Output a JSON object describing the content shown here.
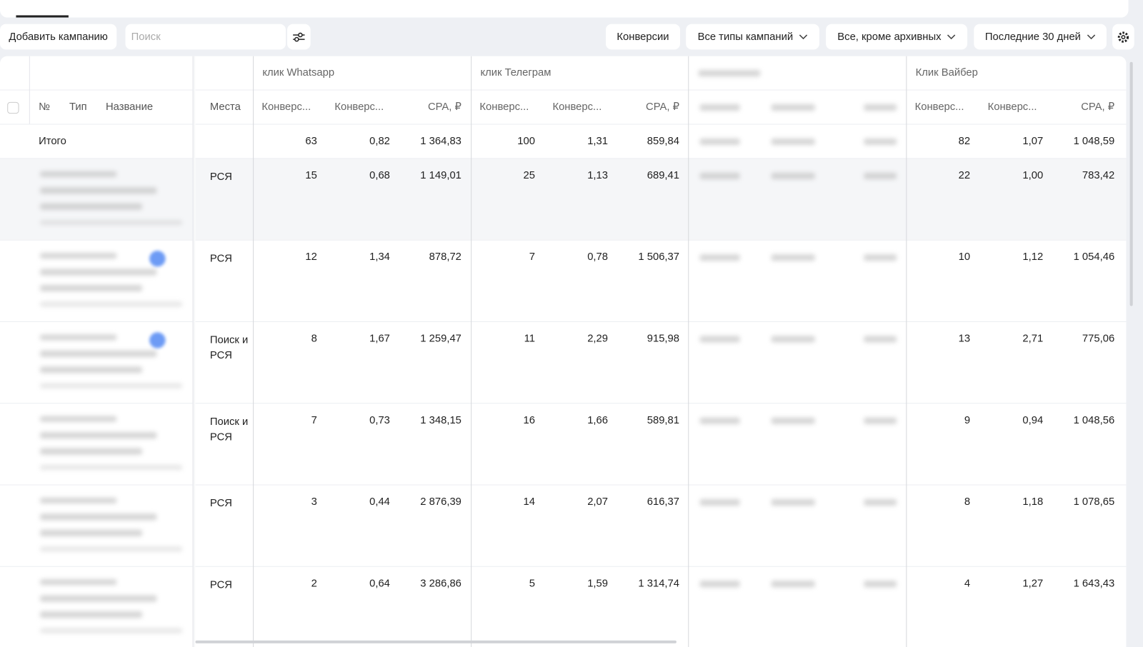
{
  "toolbar": {
    "add_button": "Добавить кампанию",
    "search_placeholder": "Поиск",
    "filters": [
      "Конверсии",
      "Все типы кампаний",
      "Все, кроме архивных",
      "Последние 30 дней"
    ]
  },
  "table": {
    "headers": {
      "num": "№",
      "type": "Тип",
      "name": "Название",
      "places": "Места"
    },
    "goals": [
      {
        "name": "клик Whatsapp",
        "columns": [
          "Конверс...",
          "Конверс...",
          "CPA, ₽"
        ]
      },
      {
        "name": "клик Телеграм",
        "columns": [
          "Конверс...",
          "Конверс...",
          "CPA, ₽"
        ]
      },
      {
        "name": "Клик Вайбер",
        "columns": [
          "Конверс...",
          "Конверс...",
          "CPA, ₽"
        ]
      }
    ],
    "total": {
      "label": "Итого",
      "values": [
        [
          "63",
          "0,82",
          "1 364,83"
        ],
        [
          "100",
          "1,31",
          "859,84"
        ],
        [
          "82",
          "1,07",
          "1 048,59"
        ]
      ]
    },
    "rows": [
      {
        "places": "РСЯ",
        "values": [
          [
            "15",
            "0,68",
            "1 149,01"
          ],
          [
            "25",
            "1,13",
            "689,41"
          ],
          [
            "22",
            "1,00",
            "783,42"
          ]
        ]
      },
      {
        "places": "РСЯ",
        "values": [
          [
            "12",
            "1,34",
            "878,72"
          ],
          [
            "7",
            "0,78",
            "1 506,37"
          ],
          [
            "10",
            "1,12",
            "1 054,46"
          ]
        ]
      },
      {
        "places": "Поиск и РСЯ",
        "values": [
          [
            "8",
            "1,67",
            "1 259,47"
          ],
          [
            "11",
            "2,29",
            "915,98"
          ],
          [
            "13",
            "2,71",
            "775,06"
          ]
        ]
      },
      {
        "places": "Поиск и РСЯ",
        "values": [
          [
            "7",
            "0,73",
            "1 348,15"
          ],
          [
            "16",
            "1,66",
            "589,81"
          ],
          [
            "9",
            "0,94",
            "1 048,56"
          ]
        ]
      },
      {
        "places": "РСЯ",
        "values": [
          [
            "3",
            "0,44",
            "2 876,39"
          ],
          [
            "14",
            "2,07",
            "616,37"
          ],
          [
            "8",
            "1,18",
            "1 078,65"
          ]
        ]
      },
      {
        "places": "РСЯ",
        "values": [
          [
            "2",
            "0,64",
            "3 286,86"
          ],
          [
            "5",
            "1,59",
            "1 314,74"
          ],
          [
            "4",
            "1,27",
            "1 643,43"
          ]
        ]
      }
    ]
  }
}
